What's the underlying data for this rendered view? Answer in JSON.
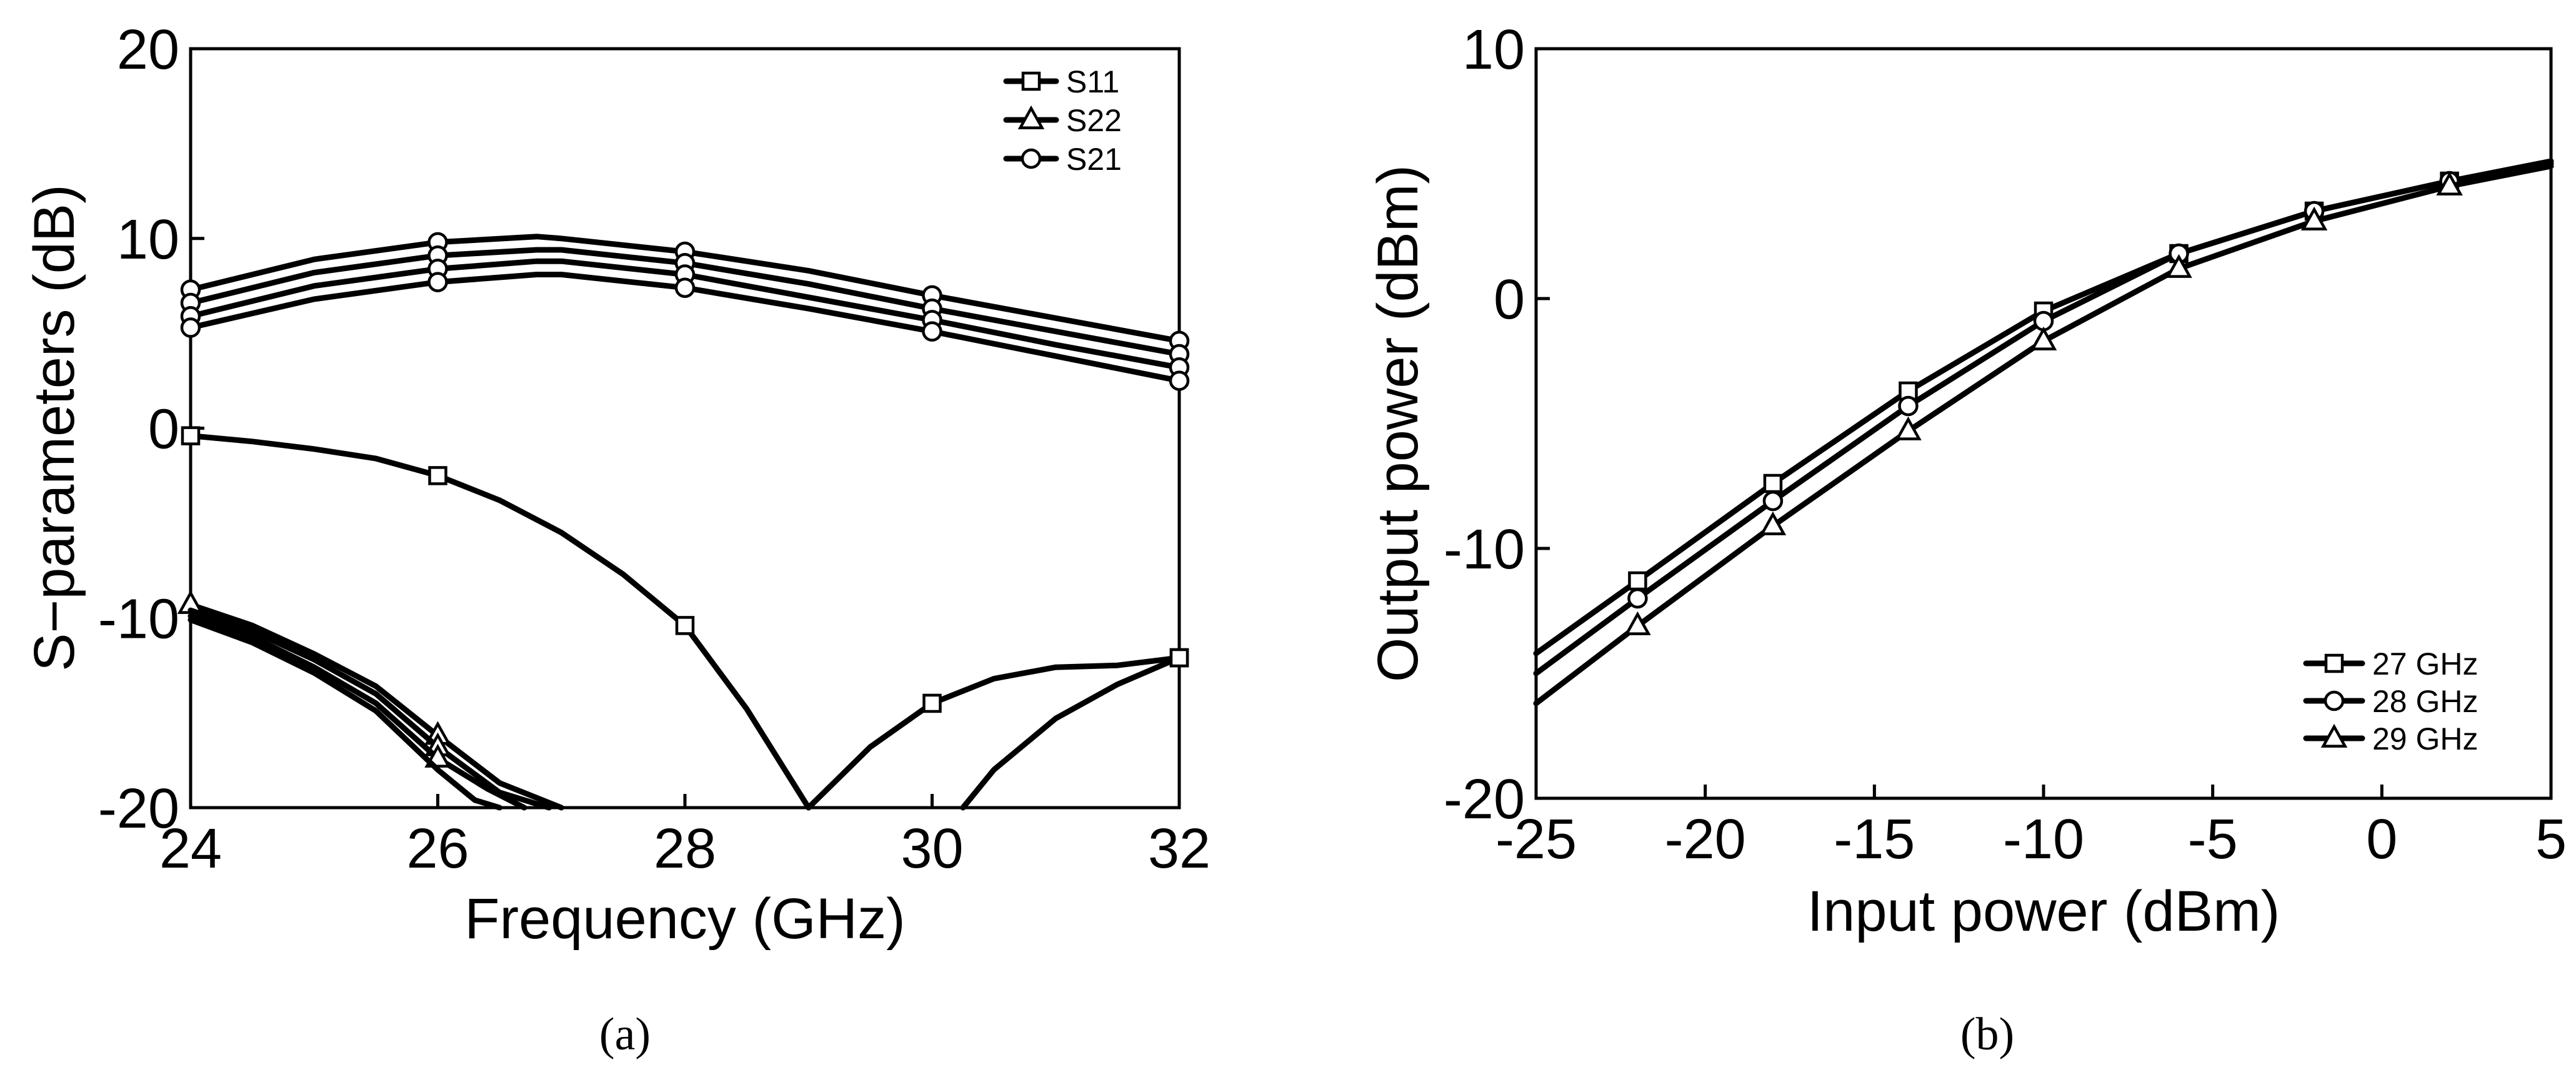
{
  "chart_data": [
    {
      "type": "line",
      "panel_label": "(a)",
      "xlabel": "Frequency (GHz)",
      "ylabel": "S−parameters (dB)",
      "xlim": [
        24,
        32
      ],
      "ylim": [
        -20,
        20
      ],
      "xticks": [
        24,
        26,
        28,
        30,
        32
      ],
      "yticks": [
        -20,
        -10,
        0,
        10,
        20
      ],
      "xtick_labels": [
        "24",
        "26",
        "28",
        "30",
        "32"
      ],
      "ytick_labels": [
        "-20",
        "-10",
        "0",
        "10",
        "20"
      ],
      "legend": [
        "S11",
        "S22",
        "S21"
      ],
      "markers": {
        "S11": "square",
        "S22": "triangle",
        "S21": "circle"
      },
      "series": [
        {
          "name": "S21",
          "marker": "circle",
          "x": [
            24,
            25,
            26,
            26.8,
            27,
            28,
            29,
            30,
            31,
            32
          ],
          "y": [
            7.3,
            8.9,
            9.8,
            10.1,
            10.0,
            9.3,
            8.3,
            7.0,
            5.8,
            4.6
          ]
        },
        {
          "name": "S21",
          "marker": "circle",
          "x": [
            24,
            25,
            26,
            26.8,
            27,
            28,
            29,
            30,
            31,
            32
          ],
          "y": [
            6.6,
            8.2,
            9.1,
            9.4,
            9.4,
            8.7,
            7.6,
            6.3,
            5.1,
            3.9
          ]
        },
        {
          "name": "S21",
          "marker": "circle",
          "x": [
            24,
            25,
            26,
            26.8,
            27,
            28,
            29,
            30,
            31,
            32
          ],
          "y": [
            5.9,
            7.5,
            8.4,
            8.8,
            8.8,
            8.1,
            6.9,
            5.7,
            4.4,
            3.2
          ]
        },
        {
          "name": "S21",
          "marker": "circle",
          "x": [
            24,
            25,
            26,
            26.8,
            27,
            28,
            29,
            30,
            31,
            32
          ],
          "y": [
            5.3,
            6.8,
            7.7,
            8.1,
            8.1,
            7.4,
            6.3,
            5.1,
            3.8,
            2.5
          ]
        },
        {
          "name": "S11",
          "marker": "square",
          "x": [
            24,
            24.5,
            25,
            25.5,
            26,
            26.5,
            27,
            27.5,
            28,
            28.5,
            29
          ],
          "y": [
            -0.4,
            -0.7,
            -1.1,
            -1.6,
            -2.5,
            -3.8,
            -5.5,
            -7.7,
            -10.4,
            -14.8,
            -20
          ],
          "marker_x": [
            24,
            26,
            28
          ]
        },
        {
          "name": "S11",
          "marker": "square",
          "x": [
            29,
            29.5,
            30,
            30.5,
            31,
            31.5,
            32
          ],
          "y": [
            -20,
            -16.8,
            -14.5,
            -13.2,
            -12.6,
            -12.5,
            -12.1
          ],
          "marker_x": [
            30,
            32
          ]
        },
        {
          "name": "S11",
          "marker": "square",
          "x": [
            30.25,
            30.5,
            31,
            31.5,
            32
          ],
          "y": [
            -20,
            -18.0,
            -15.3,
            -13.5,
            -12.1
          ],
          "marker_x": [
            32
          ]
        },
        {
          "name": "S22",
          "marker": "triangle",
          "x": [
            24,
            24.5,
            25,
            25.5,
            26,
            26.5,
            27
          ],
          "y": [
            -9.3,
            -10.4,
            -11.9,
            -13.6,
            -16.2,
            -18.7,
            -20
          ],
          "marker_x": [
            24,
            26
          ]
        },
        {
          "name": "S22",
          "marker": "triangle",
          "x": [
            24,
            24.5,
            25,
            25.5,
            26,
            26.5,
            26.9
          ],
          "y": [
            -9.6,
            -10.7,
            -12.2,
            -14.0,
            -16.8,
            -19.2,
            -20
          ],
          "marker_x": [
            26
          ]
        },
        {
          "name": "S22",
          "marker": "triangle",
          "x": [
            24,
            24.5,
            25,
            25.5,
            26,
            26.4,
            26.7
          ],
          "y": [
            -9.9,
            -11.0,
            -12.6,
            -14.5,
            -17.4,
            -19.0,
            -20
          ],
          "marker_x": [
            26
          ]
        },
        {
          "name": "S22",
          "marker": "triangle",
          "x": [
            24,
            24.5,
            25,
            25.5,
            26,
            26.3,
            26.5
          ],
          "y": [
            -10.1,
            -11.3,
            -12.9,
            -14.9,
            -18.0,
            -19.6,
            -20
          ],
          "marker_x": []
        }
      ]
    },
    {
      "type": "line",
      "panel_label": "(b)",
      "xlabel": "Input power (dBm)",
      "ylabel": "Output power (dBm)",
      "xlim": [
        -25,
        5
      ],
      "ylim": [
        -20,
        10
      ],
      "xticks": [
        -25,
        -20,
        -15,
        -10,
        -5,
        0,
        5
      ],
      "yticks": [
        -20,
        -10,
        0,
        10
      ],
      "xtick_labels": [
        "-25",
        "-20",
        "-15",
        "-10",
        "-5",
        "0",
        "5"
      ],
      "ytick_labels": [
        "-20",
        "-10",
        "0",
        "10"
      ],
      "legend": [
        "27 GHz",
        "28 GHz",
        "29 GHz"
      ],
      "series": [
        {
          "name": "27 GHz",
          "marker": "square",
          "x": [
            -25,
            -22,
            -18,
            -14,
            -10,
            -6,
            -2,
            2,
            5
          ],
          "y": [
            -14.2,
            -11.3,
            -7.4,
            -3.7,
            -0.5,
            1.8,
            3.5,
            4.7,
            5.5
          ],
          "marker_x": [
            -22,
            -18,
            -14,
            -10,
            -6,
            -2,
            2
          ]
        },
        {
          "name": "28 GHz",
          "marker": "circle",
          "x": [
            -25,
            -22,
            -18,
            -14,
            -10,
            -6,
            -2,
            2,
            5
          ],
          "y": [
            -15.0,
            -12.0,
            -8.1,
            -4.3,
            -0.9,
            1.8,
            3.5,
            4.7,
            5.4
          ],
          "marker_x": [
            -22,
            -18,
            -14,
            -10,
            -6,
            -2,
            2
          ]
        },
        {
          "name": "29 GHz",
          "marker": "triangle",
          "x": [
            -25,
            -22,
            -18,
            -14,
            -10,
            -6,
            -2,
            2,
            5
          ],
          "y": [
            -16.2,
            -13.1,
            -9.1,
            -5.3,
            -1.7,
            1.2,
            3.1,
            4.5,
            5.3
          ],
          "marker_x": [
            -22,
            -18,
            -14,
            -10,
            -6,
            -2,
            2
          ]
        }
      ]
    }
  ]
}
